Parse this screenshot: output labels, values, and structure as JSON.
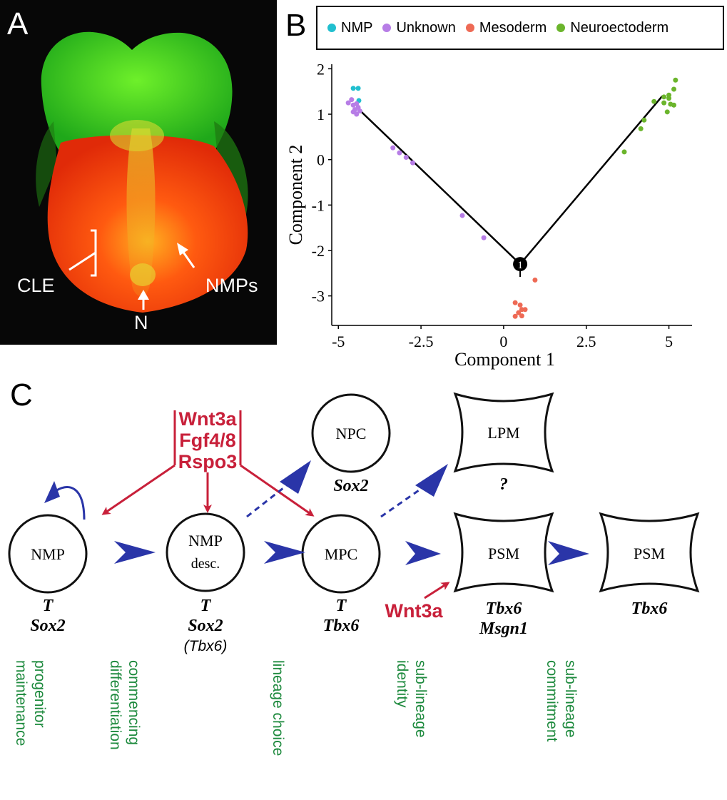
{
  "panel_a": {
    "letter": "A",
    "labels": {
      "cle": "CLE",
      "nmps": "NMPs",
      "n": "N"
    }
  },
  "panel_b": {
    "letter": "B",
    "legend": [
      {
        "label": "NMP",
        "color": "#21bfcf"
      },
      {
        "label": "Unknown",
        "color": "#b77de6"
      },
      {
        "label": "Mesoderm",
        "color": "#ee6a55"
      },
      {
        "label": "Neuroectoderm",
        "color": "#6bb52c"
      }
    ],
    "branch_point_label": "1"
  },
  "chart_data": {
    "type": "scatter",
    "xlabel": "Component 1",
    "ylabel": "Component 2",
    "xlim": [
      -5.2,
      5.7
    ],
    "ylim": [
      -3.65,
      2.1
    ],
    "xticks": [
      -5,
      -2.5,
      0,
      2.5,
      5
    ],
    "xtick_labels": [
      "-5",
      "-2.5",
      "0",
      "2.5",
      "5"
    ],
    "yticks": [
      2,
      1,
      0,
      -1,
      -2,
      -3
    ],
    "ytick_labels": [
      "2",
      "1",
      "0",
      "-1",
      "-2",
      "-3"
    ],
    "trajectory": [
      [
        -4.3,
        1.05
      ],
      [
        0.5,
        -2.3
      ],
      [
        4.8,
        1.4
      ]
    ],
    "series": [
      {
        "name": "NMP",
        "color": "#21bfcf",
        "points": [
          [
            -4.55,
            1.57
          ],
          [
            -4.4,
            1.57
          ],
          [
            -4.38,
            1.3
          ]
        ]
      },
      {
        "name": "Unknown",
        "color": "#b77de6",
        "points": [
          [
            -4.7,
            1.25
          ],
          [
            -4.6,
            1.32
          ],
          [
            -4.55,
            1.2
          ],
          [
            -4.5,
            1.1
          ],
          [
            -4.45,
            1.23
          ],
          [
            -4.55,
            1.05
          ],
          [
            -4.45,
            1.0
          ],
          [
            -4.4,
            1.15
          ],
          [
            -4.35,
            1.07
          ],
          [
            -3.35,
            0.26
          ],
          [
            -3.15,
            0.15
          ],
          [
            -2.95,
            0.05
          ],
          [
            -2.75,
            -0.07
          ],
          [
            -1.25,
            -1.23
          ],
          [
            -0.6,
            -1.72
          ],
          [
            0.4,
            -2.28
          ]
        ]
      },
      {
        "name": "Mesoderm",
        "color": "#ee6a55",
        "points": [
          [
            0.95,
            -2.65
          ],
          [
            0.35,
            -3.15
          ],
          [
            0.5,
            -3.2
          ],
          [
            0.55,
            -3.3
          ],
          [
            0.65,
            -3.3
          ],
          [
            0.45,
            -3.37
          ],
          [
            0.35,
            -3.45
          ],
          [
            0.55,
            -3.44
          ]
        ]
      },
      {
        "name": "Neuroectoderm",
        "color": "#6bb52c",
        "points": [
          [
            3.65,
            0.17
          ],
          [
            4.15,
            0.68
          ],
          [
            4.25,
            0.87
          ],
          [
            4.55,
            1.28
          ],
          [
            4.85,
            1.38
          ],
          [
            5.0,
            1.42
          ],
          [
            5.15,
            1.55
          ],
          [
            5.2,
            1.75
          ],
          [
            4.85,
            1.25
          ],
          [
            4.95,
            1.05
          ],
          [
            5.05,
            1.22
          ],
          [
            5.15,
            1.2
          ],
          [
            5.0,
            1.35
          ]
        ]
      }
    ]
  },
  "panel_c": {
    "letter": "C",
    "signals": [
      "Wnt3a",
      "Fgf4/8",
      "Rspo3"
    ],
    "psm_signal": "Wnt3a",
    "nodes": {
      "nmp": {
        "label": "NMP",
        "genes": [
          "T",
          "Sox2"
        ]
      },
      "nmp_desc": {
        "label1": "NMP",
        "label2": "desc.",
        "genes": [
          "T",
          "Sox2",
          "(Tbx6)"
        ]
      },
      "mpc": {
        "label": "MPC",
        "genes": [
          "T",
          "Tbx6"
        ]
      },
      "npc": {
        "label": "NPC",
        "genes": [
          "Sox2"
        ]
      },
      "lpm": {
        "label": "LPM",
        "genes": [
          "?"
        ]
      },
      "psm1": {
        "label": "PSM",
        "genes": [
          "Tbx6",
          "Msgn1"
        ]
      },
      "psm2": {
        "label": "PSM",
        "genes": [
          "Tbx6"
        ]
      }
    },
    "stages": [
      "progenitor\nmaintenance",
      "commencing\ndifferentiation",
      "lineage choice",
      "sub-lineage\nidentity",
      "sub-lineage\ncommitment"
    ]
  }
}
